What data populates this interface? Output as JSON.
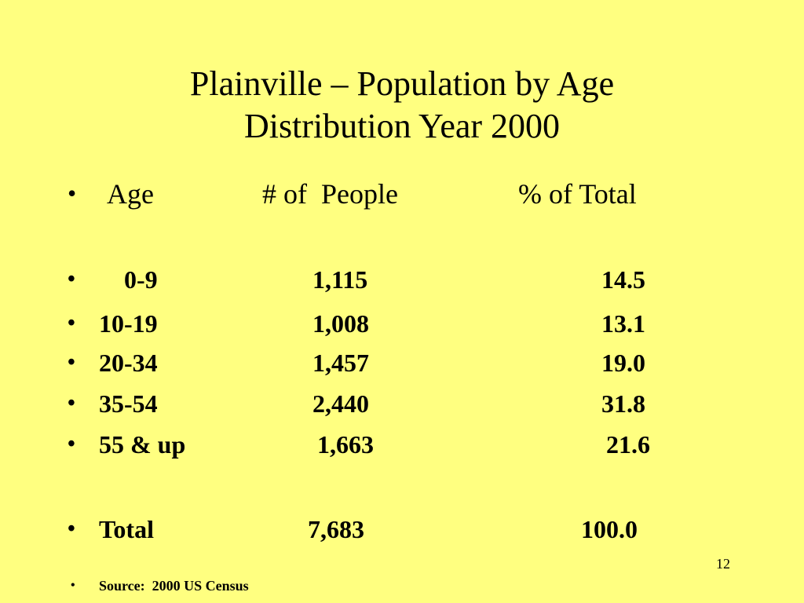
{
  "slide": {
    "title_line_1": "Plainville – Population by Age",
    "title_line_2": "Distribution Year 2000",
    "bullet_char": "•",
    "header": {
      "age": "Age",
      "people": "# of  People",
      "pct": "% of Total"
    },
    "rows": [
      {
        "age": "0-9",
        "people": "1,115",
        "pct": "14.5"
      },
      {
        "age": "10-19",
        "people": "1,008",
        "pct": "13.1"
      },
      {
        "age": "20-34",
        "people": "1,457",
        "pct": "19.0"
      },
      {
        "age": "35-54",
        "people": "2,440",
        "pct": "31.8"
      },
      {
        "age": "55 & up",
        "people": "1,663",
        "pct": "21.6"
      }
    ],
    "total": {
      "label": "Total",
      "people": "7,683",
      "pct": "100.0"
    },
    "page_number": "12",
    "source": "Source:  2000 US Census"
  },
  "colors": {
    "background": "#ffff80",
    "text": "#000000"
  }
}
